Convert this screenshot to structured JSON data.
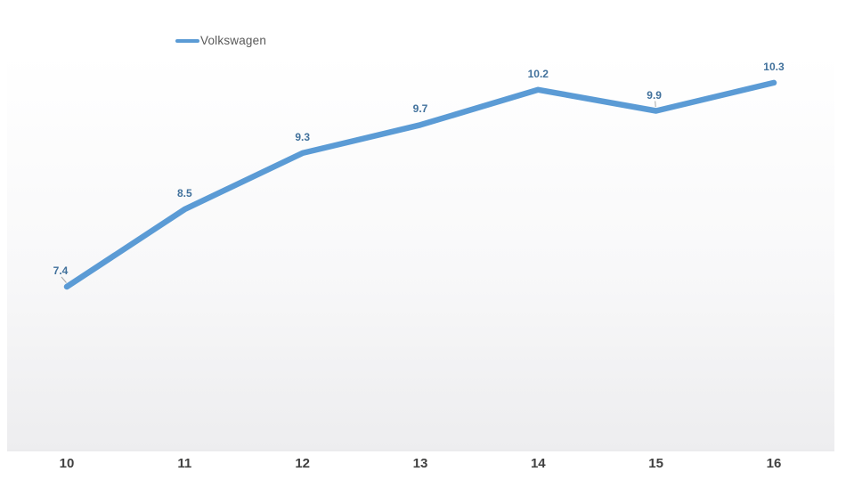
{
  "chart_data": {
    "type": "line",
    "title": "",
    "xlabel": "",
    "ylabel": "",
    "categories": [
      "10",
      "11",
      "12",
      "13",
      "14",
      "15",
      "16"
    ],
    "series": [
      {
        "name": "Volkswagen",
        "values": [
          7.4,
          8.5,
          9.3,
          9.7,
          10.2,
          9.9,
          10.3
        ],
        "color": "#5b9bd5"
      }
    ],
    "data_labels": [
      "7.4",
      "8.5",
      "9.3",
      "9.7",
      "10.2",
      "9.9",
      "10.3"
    ],
    "legend_position": "top-left",
    "grid": false,
    "y_axis_shown": false,
    "x_axis_shown": true,
    "colors": {
      "line": "#5b9bd5",
      "data_label": "#41719c",
      "axis_label": "#404040",
      "legend_text": "#595959",
      "leader_line": "#a6a6a6",
      "axis_line": "#e2e2e4",
      "plot_gradient_top": "#ffffff",
      "plot_gradient_mid": "#f8f8f9",
      "plot_gradient_bottom": "#ededef"
    },
    "label_offsets": {
      "0": {
        "dx": -7,
        "leader": true
      },
      "5": {
        "dx": -2,
        "leader": true
      }
    }
  }
}
